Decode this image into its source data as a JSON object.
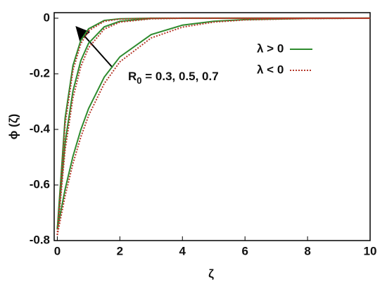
{
  "chart_data": {
    "type": "line",
    "x_label": "ζ",
    "y_label": "ϕ (ζ)",
    "xlim": [
      -0.1,
      10
    ],
    "ylim": [
      -0.8,
      0.02
    ],
    "xticks": [
      0,
      2,
      4,
      6,
      8,
      10
    ],
    "yticks": [
      -0.8,
      -0.6,
      -0.4,
      -0.2,
      0
    ],
    "x": [
      0,
      0.25,
      0.5,
      0.75,
      1,
      1.5,
      2,
      3,
      4,
      5,
      6,
      8,
      10
    ],
    "series": [
      {
        "name": "λ > 0",
        "color": "#2e8b2e",
        "dash": "solid",
        "curves": [
          [
            -0.76,
            -0.359,
            -0.17,
            -0.08,
            -0.038,
            -0.008,
            -0.002,
            0,
            0,
            0,
            0,
            0,
            0
          ],
          [
            -0.76,
            -0.446,
            -0.262,
            -0.153,
            -0.09,
            -0.031,
            -0.011,
            -0.001,
            0,
            0,
            0,
            0,
            0
          ],
          [
            -0.76,
            -0.615,
            -0.497,
            -0.402,
            -0.325,
            -0.212,
            -0.139,
            -0.059,
            -0.025,
            -0.011,
            -0.005,
            -0.001,
            0
          ]
        ]
      },
      {
        "name": "λ < 0",
        "color": "#b5382a",
        "dash": "dotted",
        "curves": [
          [
            -0.78,
            -0.382,
            -0.188,
            -0.092,
            -0.045,
            -0.011,
            -0.003,
            0,
            0,
            0,
            0,
            0,
            0
          ],
          [
            -0.78,
            -0.473,
            -0.287,
            -0.174,
            -0.106,
            -0.039,
            -0.014,
            -0.002,
            0,
            0,
            0,
            0,
            0
          ],
          [
            -0.78,
            -0.639,
            -0.523,
            -0.428,
            -0.35,
            -0.235,
            -0.157,
            -0.071,
            -0.032,
            -0.014,
            -0.006,
            -0.001,
            0
          ]
        ]
      }
    ],
    "annotation": {
      "text": "R",
      "subscript": "0",
      "rest": " = 0.3, 0.5, 0.7"
    }
  }
}
